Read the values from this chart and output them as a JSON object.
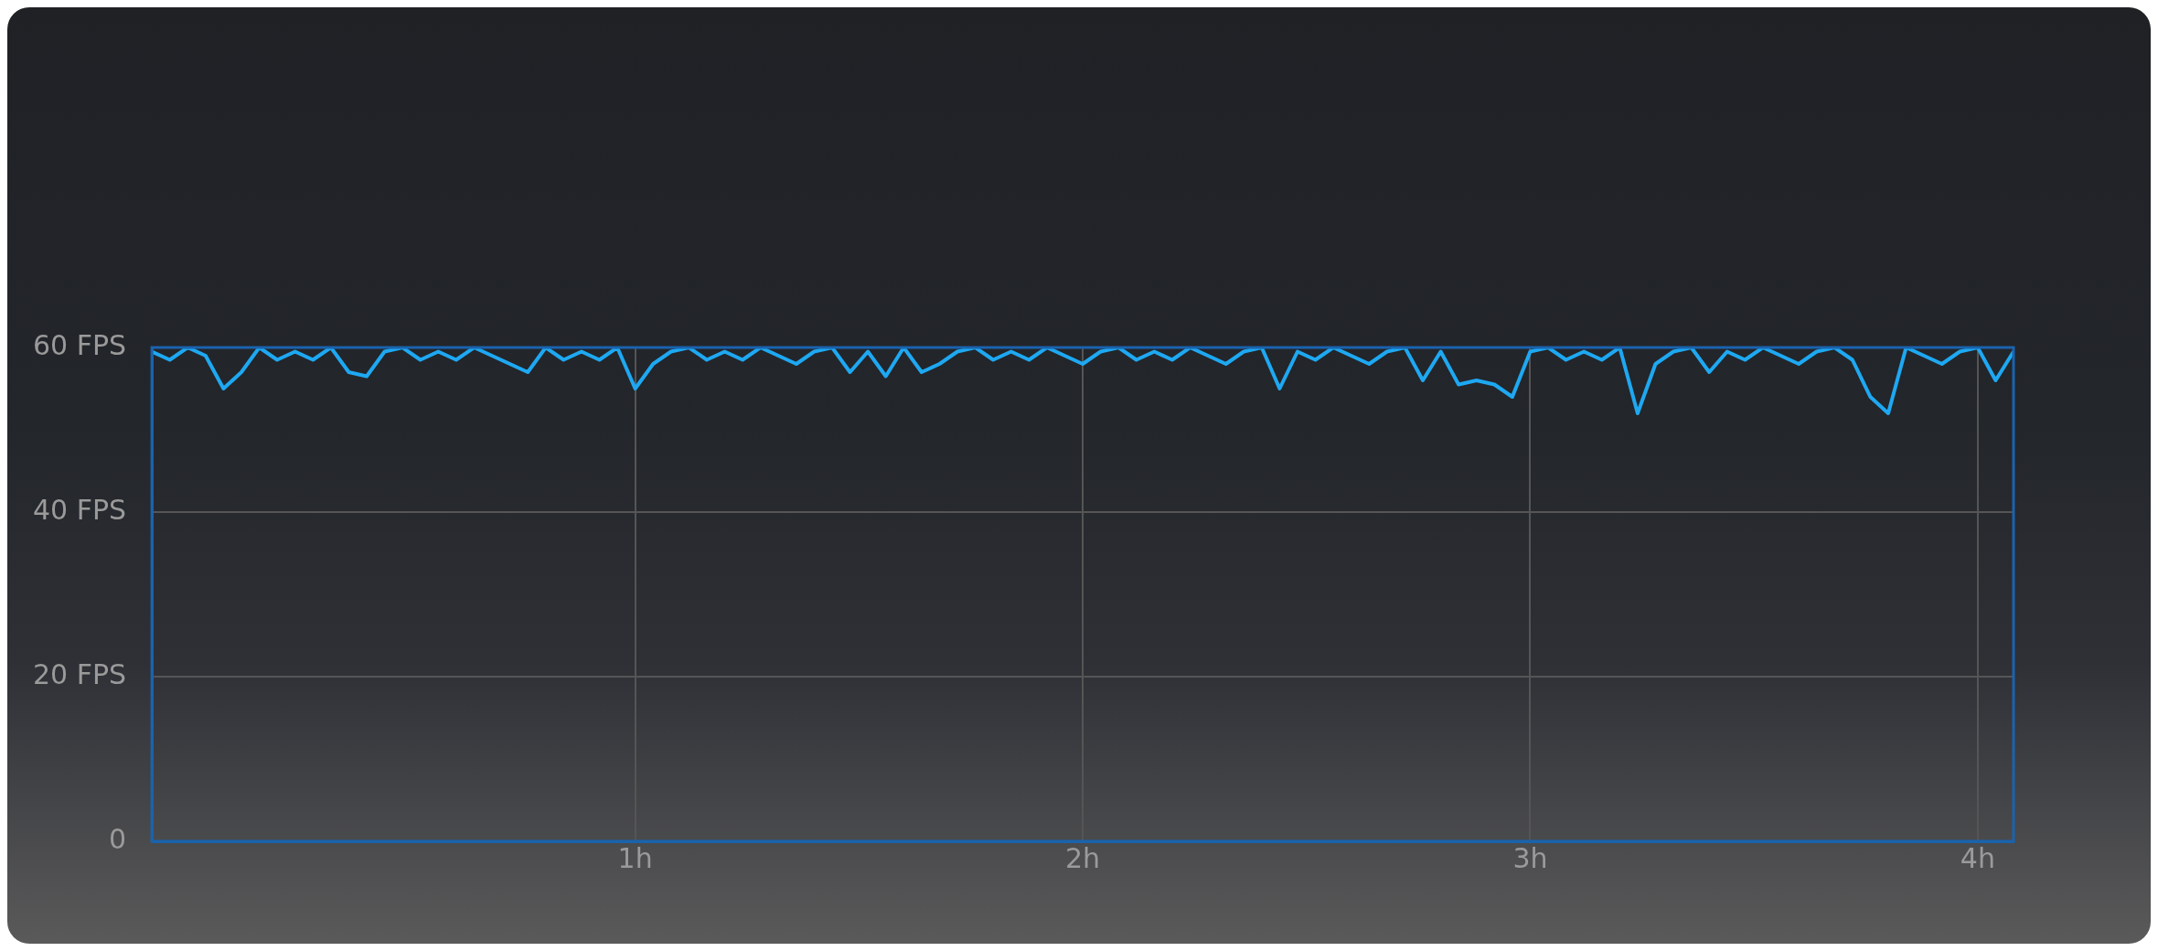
{
  "chart_data": {
    "type": "line",
    "x": [
      -0.08,
      -0.04,
      0,
      0.04,
      0.08,
      0.12,
      0.16,
      0.2,
      0.24,
      0.28,
      0.32,
      0.36,
      0.4,
      0.44,
      0.48,
      0.52,
      0.56,
      0.6,
      0.64,
      0.68,
      0.72,
      0.76,
      0.8,
      0.84,
      0.88,
      0.92,
      0.96,
      1,
      1.04,
      1.08,
      1.12,
      1.16,
      1.2,
      1.24,
      1.28,
      1.32,
      1.36,
      1.4,
      1.44,
      1.48,
      1.52,
      1.56,
      1.6,
      1.64,
      1.68,
      1.72,
      1.76,
      1.8,
      1.84,
      1.88,
      1.92,
      1.96,
      2,
      2.04,
      2.08,
      2.12,
      2.16,
      2.2,
      2.24,
      2.28,
      2.32,
      2.36,
      2.4,
      2.44,
      2.48,
      2.52,
      2.56,
      2.6,
      2.64,
      2.68,
      2.72,
      2.76,
      2.8,
      2.84,
      2.88,
      2.92,
      2.96,
      3,
      3.04,
      3.08,
      3.12,
      3.16,
      3.2,
      3.24,
      3.28,
      3.32,
      3.36,
      3.4,
      3.44,
      3.48,
      3.52,
      3.56,
      3.6,
      3.64,
      3.68,
      3.72,
      3.76,
      3.8,
      3.84,
      3.88,
      3.92,
      3.96,
      4,
      4.04,
      4.08
    ],
    "series": [
      {
        "color": "#1ea8f2",
        "values": [
          59.5,
          58.5,
          60,
          59,
          55,
          57,
          60,
          58.5,
          59.5,
          58.5,
          60,
          57,
          56.5,
          59.5,
          60,
          58.5,
          59.5,
          58.5,
          60,
          59,
          58,
          57,
          60,
          58.5,
          59.5,
          58.5,
          60,
          55,
          58,
          59.5,
          60,
          58.5,
          59.5,
          58.5,
          60,
          59,
          58,
          59.5,
          60,
          57,
          59.5,
          56.5,
          60,
          57,
          58,
          59.5,
          60,
          58.5,
          59.5,
          58.5,
          60,
          59,
          58,
          59.5,
          60,
          58.5,
          59.5,
          58.5,
          60,
          59,
          58,
          59.5,
          60,
          55,
          59.5,
          58.5,
          60,
          59,
          58,
          59.5,
          60,
          56,
          59.5,
          55.5,
          56,
          55.5,
          54,
          59.5,
          60,
          58.5,
          59.5,
          58.5,
          60,
          52,
          58,
          59.5,
          60,
          57,
          59.5,
          58.5,
          60,
          59,
          58,
          59.5,
          60,
          58.5,
          54,
          52,
          60,
          59,
          58,
          59.5,
          60,
          56,
          59.5
        ]
      }
    ],
    "xlim": [
      -0.08,
      4.08
    ],
    "xticks": [
      {
        "value": 1,
        "label": "1h"
      },
      {
        "value": 2,
        "label": "2h"
      },
      {
        "value": 3,
        "label": "3h"
      },
      {
        "value": 4,
        "label": "4h"
      }
    ],
    "ylim": [
      0,
      60
    ],
    "yticks": [
      0,
      {
        "value": 20,
        "label": "20 FPS"
      },
      {
        "value": 40,
        "label": "40 FPS"
      },
      {
        "value": 60,
        "label": "60 FPS"
      }
    ],
    "grid": true,
    "marker": "none",
    "line_style": "solid"
  }
}
